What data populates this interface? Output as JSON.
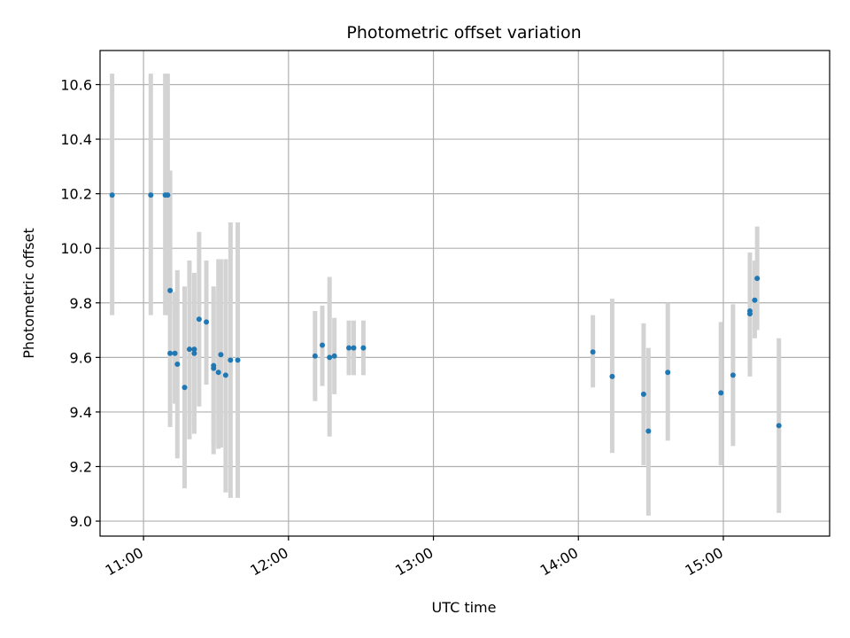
{
  "chart_data": {
    "type": "scatter",
    "title": "Photometric offset variation",
    "xlabel": "UTC time",
    "ylabel": "Photometric offset",
    "xlim": [
      "10:42",
      "15:44"
    ],
    "ylim": [
      8.945,
      10.725
    ],
    "x_ticks": [
      "11:00",
      "12:00",
      "13:00",
      "14:00",
      "15:00"
    ],
    "y_ticks": [
      "9.0",
      "9.2",
      "9.4",
      "9.6",
      "9.8",
      "10.0",
      "10.2",
      "10.4",
      "10.6"
    ],
    "grid": true,
    "colors": {
      "marker": "#1f77b4",
      "errorbar": "#d3d3d3",
      "grid": "#b0b0b0"
    },
    "points": [
      {
        "time": "10:47",
        "y": 10.195,
        "err_low": 9.755,
        "err_high": 10.64
      },
      {
        "time": "11:03",
        "y": 10.195,
        "err_low": 9.755,
        "err_high": 10.64
      },
      {
        "time": "11:09",
        "y": 10.195,
        "err_low": 9.755,
        "err_high": 10.64
      },
      {
        "time": "11:10",
        "y": 10.195,
        "err_low": 9.755,
        "err_high": 10.64
      },
      {
        "time": "11:11",
        "y": 9.845,
        "err_low": 9.755,
        "err_high": 10.285
      },
      {
        "time": "11:11",
        "y": 9.615,
        "err_low": 9.345,
        "err_high": 9.88
      },
      {
        "time": "11:13",
        "y": 9.615,
        "err_low": 9.43,
        "err_high": 9.84
      },
      {
        "time": "11:14",
        "y": 9.575,
        "err_low": 9.23,
        "err_high": 9.92
      },
      {
        "time": "11:17",
        "y": 9.49,
        "err_low": 9.12,
        "err_high": 9.86
      },
      {
        "time": "11:19",
        "y": 9.63,
        "err_low": 9.3,
        "err_high": 9.955
      },
      {
        "time": "11:21",
        "y": 9.615,
        "err_low": 9.32,
        "err_high": 9.9
      },
      {
        "time": "11:21",
        "y": 9.63,
        "err_low": 9.35,
        "err_high": 9.91
      },
      {
        "time": "11:23",
        "y": 9.74,
        "err_low": 9.42,
        "err_high": 10.06
      },
      {
        "time": "11:26",
        "y": 9.73,
        "err_low": 9.5,
        "err_high": 9.955
      },
      {
        "time": "11:29",
        "y": 9.56,
        "err_low": 9.245,
        "err_high": 9.86
      },
      {
        "time": "11:29",
        "y": 9.57,
        "err_low": 9.28,
        "err_high": 9.84
      },
      {
        "time": "11:31",
        "y": 9.545,
        "err_low": 9.265,
        "err_high": 9.96
      },
      {
        "time": "11:32",
        "y": 9.61,
        "err_low": 9.27,
        "err_high": 9.96
      },
      {
        "time": "11:34",
        "y": 9.535,
        "err_low": 9.105,
        "err_high": 9.96
      },
      {
        "time": "11:36",
        "y": 9.59,
        "err_low": 9.085,
        "err_high": 10.095
      },
      {
        "time": "11:39",
        "y": 9.59,
        "err_low": 9.085,
        "err_high": 10.095
      },
      {
        "time": "12:11",
        "y": 9.605,
        "err_low": 9.44,
        "err_high": 9.77
      },
      {
        "time": "12:14",
        "y": 9.645,
        "err_low": 9.495,
        "err_high": 9.79
      },
      {
        "time": "12:17",
        "y": 9.6,
        "err_low": 9.31,
        "err_high": 9.895
      },
      {
        "time": "12:19",
        "y": 9.605,
        "err_low": 9.465,
        "err_high": 9.745
      },
      {
        "time": "12:25",
        "y": 9.635,
        "err_low": 9.535,
        "err_high": 9.735
      },
      {
        "time": "12:27",
        "y": 9.635,
        "err_low": 9.535,
        "err_high": 9.735
      },
      {
        "time": "12:31",
        "y": 9.635,
        "err_low": 9.535,
        "err_high": 9.735
      },
      {
        "time": "14:06",
        "y": 9.62,
        "err_low": 9.49,
        "err_high": 9.755
      },
      {
        "time": "14:14",
        "y": 9.53,
        "err_low": 9.25,
        "err_high": 9.815
      },
      {
        "time": "14:27",
        "y": 9.465,
        "err_low": 9.205,
        "err_high": 9.725
      },
      {
        "time": "14:29",
        "y": 9.33,
        "err_low": 9.02,
        "err_high": 9.635
      },
      {
        "time": "14:37",
        "y": 9.545,
        "err_low": 9.295,
        "err_high": 9.8
      },
      {
        "time": "14:59",
        "y": 9.47,
        "err_low": 9.205,
        "err_high": 9.73
      },
      {
        "time": "15:04",
        "y": 9.535,
        "err_low": 9.275,
        "err_high": 9.795
      },
      {
        "time": "15:11",
        "y": 9.76,
        "err_low": 9.53,
        "err_high": 9.985
      },
      {
        "time": "15:11",
        "y": 9.77,
        "err_low": 9.56,
        "err_high": 9.98
      },
      {
        "time": "15:13",
        "y": 9.81,
        "err_low": 9.67,
        "err_high": 9.955
      },
      {
        "time": "15:14",
        "y": 9.89,
        "err_low": 9.7,
        "err_high": 10.08
      },
      {
        "time": "15:23",
        "y": 9.35,
        "err_low": 9.03,
        "err_high": 9.67
      }
    ]
  }
}
